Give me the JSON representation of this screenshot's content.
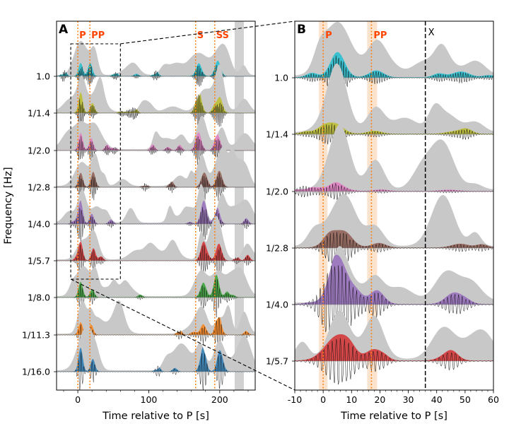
{
  "chart_data": [
    {
      "type": "area",
      "panel_label": "A",
      "xlabel": "Time relative to P [s]",
      "ylabel": "Frequency [Hz]",
      "xlim": [
        -30,
        250
      ],
      "xticks": [
        0,
        100,
        200
      ],
      "x_minor_step": 20,
      "bands": [
        "1.0",
        "1/1.4",
        "1/2.0",
        "1/2.8",
        "1/4.0",
        "1/5.7",
        "1/8.0",
        "1/11.3",
        "1/16.0"
      ],
      "band_colors": [
        "#17becf",
        "#bcbd22",
        "#e377c2",
        "#8c564b",
        "#9467bd",
        "#d62728",
        "#2ca02c",
        "#ff7f0e",
        "#1f77b4"
      ],
      "phases": [
        {
          "label": "P",
          "t": 0
        },
        {
          "label": "PP",
          "t": 17
        },
        {
          "label": "S",
          "t": 166
        },
        {
          "label": "SS",
          "t": 193
        }
      ],
      "shaded_windows": [
        [
          221,
          234
        ]
      ],
      "zoom_box": {
        "t0": -10,
        "t1": 60,
        "band_top": "1.0",
        "band_bottom": "1/5.7"
      }
    },
    {
      "type": "area",
      "panel_label": "B",
      "xlabel": "Time relative to P [s]",
      "ylabel": "",
      "xlim": [
        -10,
        60
      ],
      "xticks": [
        -10,
        0,
        10,
        20,
        30,
        40,
        50,
        60
      ],
      "x_minor_step": 2,
      "bands": [
        "1.0",
        "1/1.4",
        "1/2.0",
        "1/2.8",
        "1/4.0",
        "1/5.7"
      ],
      "band_colors": [
        "#17becf",
        "#bcbd22",
        "#e377c2",
        "#8c564b",
        "#9467bd",
        "#d62728"
      ],
      "phases": [
        {
          "label": "P",
          "t": 0,
          "window": [
            -1.5,
            1.5
          ]
        },
        {
          "label": "PP",
          "t": 17,
          "window": [
            15.5,
            19
          ]
        }
      ],
      "marker": {
        "label": "X",
        "t": 36
      }
    }
  ]
}
